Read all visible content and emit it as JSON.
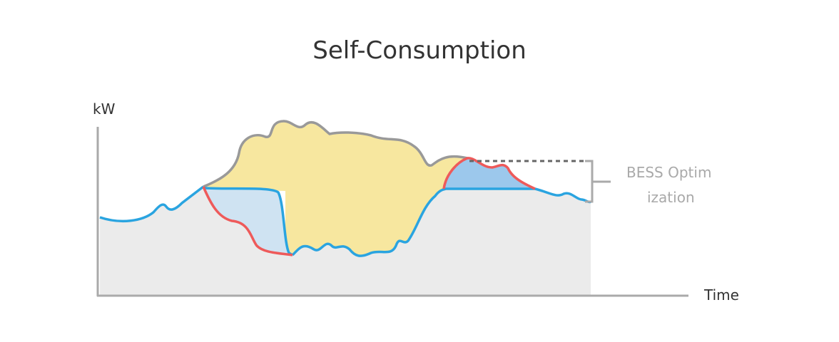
{
  "title": "Self-Consumption",
  "y_axis_label": "kW",
  "x_axis_label": "Time",
  "annotation": {
    "lines": [
      "BESS Optim",
      "ization"
    ]
  }
}
